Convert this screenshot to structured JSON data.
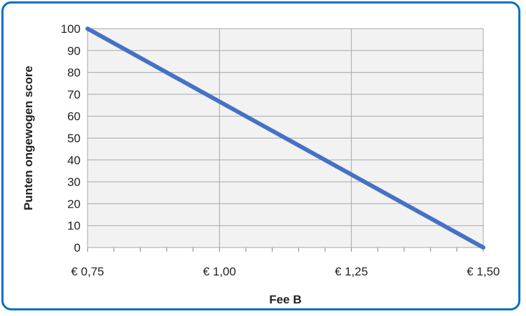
{
  "chart_data": {
    "type": "line",
    "title": "",
    "xlabel": "Fee B",
    "ylabel": "Punten ongewogen score",
    "x_tick_labels": [
      "€ 0,75",
      "€ 1,00",
      "€ 1,25",
      "€ 1,50"
    ],
    "x_ticks": [
      0.75,
      1.0,
      1.25,
      1.5
    ],
    "y_ticks": [
      0,
      10,
      20,
      30,
      40,
      50,
      60,
      70,
      80,
      90,
      100
    ],
    "xlim": [
      0.75,
      1.5
    ],
    "ylim": [
      0,
      100
    ],
    "grid": true,
    "legend": "none",
    "series": [
      {
        "x": [
          0.75,
          1.5
        ],
        "y": [
          100,
          0
        ],
        "color": "#4472C4"
      }
    ],
    "colors": {
      "frame": "#0070C0",
      "plot_bg": "#F2F2F2",
      "grid": "#A6A6A6"
    }
  }
}
